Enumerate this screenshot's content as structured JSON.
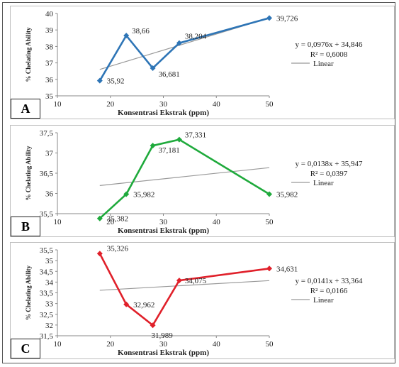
{
  "chart_data": [
    {
      "type": "line",
      "panel_label": "A",
      "xlabel": "Konsentrasi Ekstrak (ppm)",
      "ylabel": "% Chelating Ability",
      "xlim": [
        10,
        50
      ],
      "ylim": [
        35,
        40
      ],
      "xticks": [
        "10",
        "20",
        "30",
        "40",
        "50"
      ],
      "yticks": [
        "35",
        "36",
        "37",
        "38",
        "39",
        "40"
      ],
      "color": "#2e75b6",
      "x": [
        18,
        23,
        28,
        33,
        50
      ],
      "y": [
        35.92,
        38.66,
        36.681,
        38.204,
        39.726
      ],
      "point_labels": [
        "35,92",
        "38,66",
        "36,681",
        "38,204",
        "39,726"
      ],
      "trendline": {
        "slope": 0.0976,
        "intercept": 34.846
      },
      "equation": "y = 0,0976x + 34,846",
      "r2": "R² = 0,6008",
      "legend": "Linear"
    },
    {
      "type": "line",
      "panel_label": "B",
      "xlabel": "Konsentrasi Ekstrak (ppm)",
      "ylabel": "% Chelating Ability",
      "xlim": [
        10,
        50
      ],
      "ylim": [
        35.5,
        37.5
      ],
      "xticks": [
        "10",
        "20",
        "30",
        "40",
        "50"
      ],
      "yticks": [
        "35,5",
        "36",
        "36,5",
        "37",
        "37,5"
      ],
      "color": "#1faa3c",
      "x": [
        18,
        23,
        28,
        33,
        50
      ],
      "y": [
        35.382,
        35.982,
        37.181,
        37.331,
        35.982
      ],
      "point_labels": [
        "35,382",
        "35,982",
        "37,181",
        "37,331",
        "35,982"
      ],
      "trendline": {
        "slope": 0.0138,
        "intercept": 35.947
      },
      "equation": "y = 0,0138x + 35,947",
      "r2": "R² = 0,0397",
      "legend": "Linear"
    },
    {
      "type": "line",
      "panel_label": "C",
      "xlabel": "Konsentrasi Ekstrak (ppm)",
      "ylabel": "% Chelating Ability",
      "xlim": [
        10,
        50
      ],
      "ylim": [
        31.5,
        35.5
      ],
      "xticks": [
        "10",
        "20",
        "30",
        "40",
        "50"
      ],
      "yticks": [
        "31,5",
        "32",
        "32,5",
        "33",
        "33,5",
        "34",
        "34,5",
        "35",
        "35,5"
      ],
      "color": "#e0202a",
      "x": [
        18,
        23,
        28,
        33,
        50
      ],
      "y": [
        35.326,
        32.962,
        31.989,
        34.075,
        34.631
      ],
      "point_labels": [
        "35,326",
        "32,962",
        "31,989",
        "34,075",
        "34,631"
      ],
      "trendline": {
        "slope": 0.0141,
        "intercept": 33.364
      },
      "equation": "y = 0,0141x + 33,364",
      "r2": "R² = 0,0166",
      "legend": "Linear"
    }
  ]
}
